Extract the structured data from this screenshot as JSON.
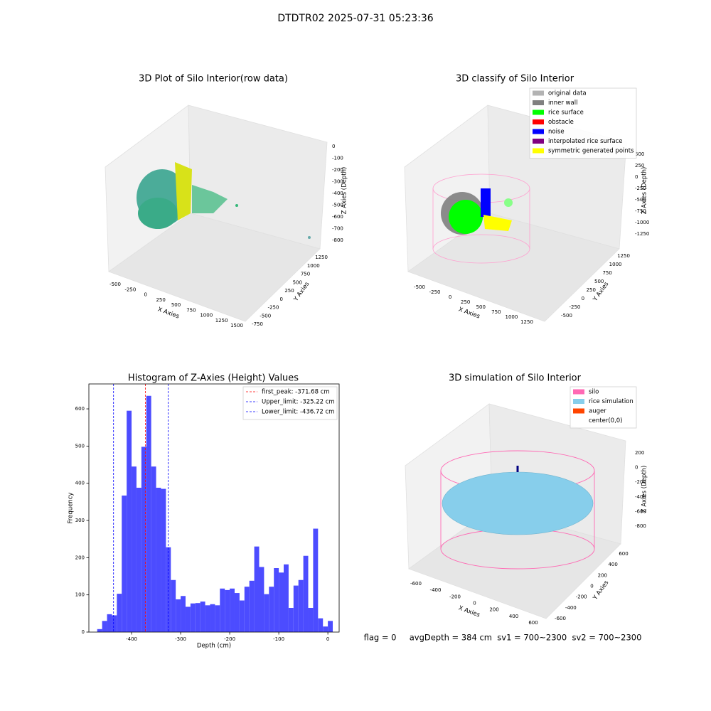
{
  "title": "DTDTR02 2025-07-31 05:23:36",
  "footer": "flag = 0     avgDepth = 384 cm  sv1 = 700~2300  sv2 = 700~2300",
  "chart_data": [
    {
      "type": "scatter3d",
      "title": "3D Plot of Silo Interior(row data)",
      "xlabel": "X Axies",
      "ylabel": "Y Axies",
      "zlabel": "Z Axies (Depth)",
      "xticks": [
        -500,
        -250,
        0,
        250,
        500,
        750,
        1000,
        1250,
        1500
      ],
      "yticks": [
        -750,
        -500,
        -250,
        0,
        250,
        500,
        750,
        1000,
        1250
      ],
      "zticks": [
        0,
        -100,
        -200,
        -300,
        -400,
        -500,
        -600,
        -700,
        -800
      ]
    },
    {
      "type": "scatter3d",
      "title": "3D classify of Silo Interior",
      "xlabel": "X Axies",
      "ylabel": "Y Axies",
      "zlabel": "Z Axies (Depth)",
      "xticks": [
        -500,
        -250,
        0,
        250,
        500,
        750,
        1000,
        1250
      ],
      "yticks": [
        -500,
        -250,
        0,
        250,
        500,
        750,
        1000,
        1250
      ],
      "zticks": [
        500,
        250,
        0,
        -250,
        -500,
        -750,
        -1000,
        -1250
      ],
      "legend": [
        {
          "name": "original data",
          "color": "#b3b3b3"
        },
        {
          "name": "inner wall",
          "color": "#808080"
        },
        {
          "name": "rice surface",
          "color": "#00ff00"
        },
        {
          "name": "obstacle",
          "color": "#ff0000"
        },
        {
          "name": "noise",
          "color": "#0000ff"
        },
        {
          "name": "interpolated rice surface",
          "color": "#800080"
        },
        {
          "name": "symmetric generated points",
          "color": "#ffff00"
        }
      ]
    },
    {
      "type": "histogram",
      "title": "Histogram of Z-Axies (Height) Values",
      "xlabel": "Depth (cm)",
      "ylabel": "Frequency",
      "color": "#4c4cff",
      "bins": [
        -470,
        -460,
        -450,
        -440,
        -430,
        -420,
        -410,
        -400,
        -390,
        -380,
        -370,
        -360,
        -350,
        -340,
        -330,
        -320,
        -310,
        -300,
        -290,
        -280,
        -270,
        -260,
        -250,
        -240,
        -230,
        -220,
        -210,
        -200,
        -190,
        -180,
        -170,
        -160,
        -150,
        -140,
        -130,
        -120,
        -110,
        -100,
        -90,
        -80,
        -70,
        -60,
        -50,
        -40,
        -30,
        -20,
        -10,
        0,
        10
      ],
      "counts": [
        8,
        30,
        48,
        45,
        103,
        367,
        595,
        445,
        388,
        498,
        635,
        445,
        388,
        385,
        228,
        140,
        88,
        97,
        68,
        77,
        78,
        82,
        72,
        75,
        72,
        117,
        113,
        117,
        105,
        85,
        122,
        138,
        230,
        175,
        102,
        122,
        172,
        160,
        182,
        65,
        125,
        140,
        205,
        65,
        278,
        37,
        15,
        30
      ],
      "xlim": [
        -487,
        23
      ],
      "ylim": [
        0,
        667
      ],
      "xticks": [
        -400,
        -300,
        -200,
        -100,
        0
      ],
      "yticks": [
        0,
        100,
        200,
        300,
        400,
        500,
        600
      ],
      "vlines": [
        {
          "name": "first_peak: -371.68 cm",
          "value": -371.68,
          "color": "#ff0000"
        },
        {
          "name": "Upper_limit: -325.22 cm",
          "value": -325.22,
          "color": "#0000ff"
        },
        {
          "name": "Lower_limit: -436.72 cm",
          "value": -436.72,
          "color": "#0000ff"
        }
      ]
    },
    {
      "type": "surface3d",
      "title": "3D simulation of Silo Interior",
      "xlabel": "X Axies",
      "ylabel": "Y Axies",
      "zlabel": "Z Axies (Depth)",
      "xticks": [
        -600,
        -400,
        -200,
        0,
        200,
        400,
        600
      ],
      "yticks": [
        -600,
        -400,
        -200,
        0,
        200,
        400,
        600
      ],
      "zticks": [
        200,
        0,
        -200,
        -400,
        -600,
        -800
      ],
      "legend": [
        {
          "name": "silo",
          "color": "#ff69b4"
        },
        {
          "name": "rice simulation",
          "color": "#87ceeb"
        },
        {
          "name": "auger",
          "color": "#ff4500"
        },
        {
          "name": "center(0,0)",
          "color": "#ffffff"
        }
      ]
    }
  ]
}
